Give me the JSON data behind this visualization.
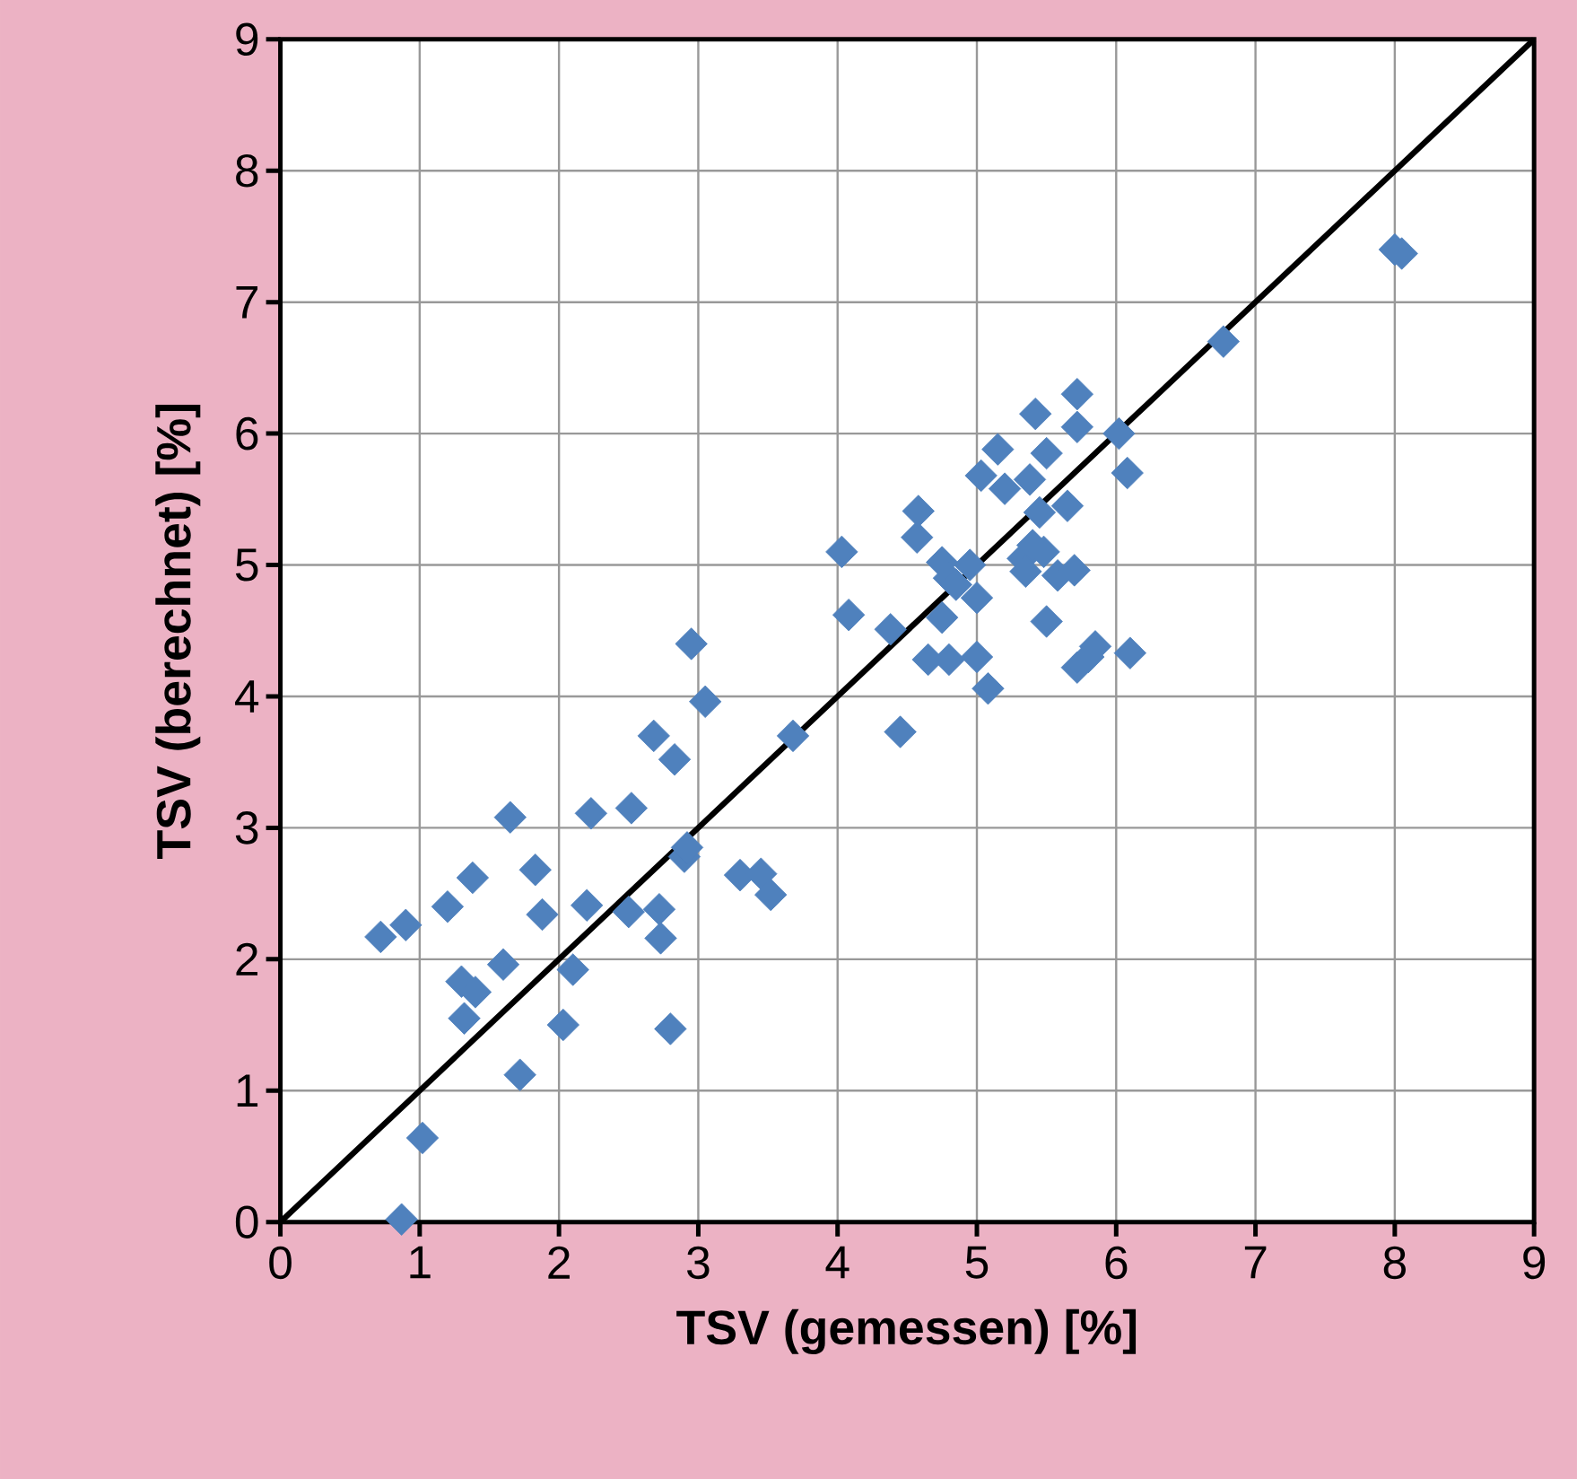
{
  "chart_data": {
    "type": "scatter",
    "xlabel": "TSV (gemessen) [%]",
    "ylabel": "TSV (berechnet) [%]",
    "xlim": [
      0,
      9
    ],
    "ylim": [
      0,
      9
    ],
    "xticks": [
      0,
      1,
      2,
      3,
      4,
      5,
      6,
      7,
      8,
      9
    ],
    "yticks": [
      0,
      1,
      2,
      3,
      4,
      5,
      6,
      7,
      8,
      9
    ],
    "grid": true,
    "series": [
      {
        "color": "#4f81bd",
        "marker": "diamond",
        "x": [
          0.72,
          0.9,
          0.87,
          1.02,
          1.2,
          1.3,
          1.32,
          1.38,
          1.4,
          1.6,
          1.65,
          1.72,
          1.83,
          1.88,
          2.03,
          2.1,
          2.2,
          2.23,
          2.5,
          2.52,
          2.68,
          2.72,
          2.73,
          2.8,
          2.83,
          2.9,
          2.92,
          2.95,
          3.05,
          3.3,
          3.45,
          3.52,
          3.68,
          4.03,
          4.08,
          4.38,
          4.45,
          4.57,
          4.58,
          4.65,
          4.75,
          4.75,
          4.8,
          4.8,
          4.85,
          4.95,
          5.0,
          5.0,
          5.03,
          5.08,
          5.15,
          5.2,
          5.33,
          5.35,
          5.38,
          5.4,
          5.42,
          5.45,
          5.48,
          5.5,
          5.5,
          5.58,
          5.65,
          5.7,
          5.72,
          5.72,
          5.72,
          5.8,
          5.85,
          6.02,
          6.08,
          6.1,
          6.77,
          8.0,
          8.05
        ],
        "values": [
          2.17,
          2.26,
          0.02,
          0.64,
          2.4,
          1.83,
          1.55,
          2.62,
          1.75,
          1.96,
          3.08,
          1.12,
          2.68,
          2.34,
          1.5,
          1.92,
          2.41,
          3.11,
          2.36,
          3.15,
          3.7,
          2.38,
          2.16,
          1.47,
          3.52,
          2.78,
          2.85,
          4.4,
          3.96,
          2.64,
          2.65,
          2.49,
          3.7,
          5.1,
          4.62,
          4.51,
          3.73,
          5.21,
          5.41,
          4.28,
          4.6,
          5.02,
          4.9,
          4.28,
          4.85,
          5.0,
          4.75,
          4.3,
          5.68,
          4.06,
          5.88,
          5.58,
          5.05,
          4.95,
          5.65,
          5.15,
          6.15,
          5.4,
          5.1,
          5.85,
          4.57,
          4.92,
          5.45,
          4.96,
          4.22,
          6.3,
          6.05,
          4.3,
          4.38,
          6.0,
          5.7,
          4.33,
          6.7,
          7.4,
          7.37
        ]
      },
      {
        "type": "line",
        "color": "#000000",
        "marker": "none",
        "line_style": "solid",
        "x": [
          0,
          9
        ],
        "values": [
          0,
          9
        ]
      }
    ]
  }
}
